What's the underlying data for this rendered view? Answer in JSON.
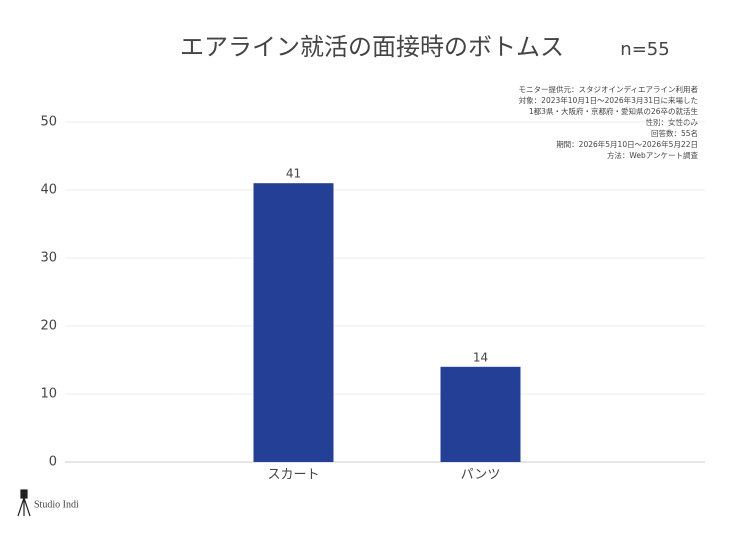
{
  "chart_data": {
    "type": "bar",
    "title": "エアライン就活の面接時のボトムス",
    "subtitle": "n=55",
    "notes": [
      "モニター提供元：スタジオインディエアライン利用者",
      "対象：2023年10月1日〜2026年3月31日に来場した",
      "1都3県・大阪府・京都府・愛知県の26卒の就活生",
      "性別：女性のみ",
      "回答数：55名",
      "期間：2026年5月10日〜2026年5月22日",
      "方法：Webアンケート調査"
    ],
    "logo": "Studio Indi",
    "categories": [
      "スカート",
      "パンツ"
    ],
    "values": [
      41,
      14
    ],
    "color": "#233f96",
    "ylim": [
      0,
      50
    ],
    "yticks": [
      0,
      10,
      20,
      30,
      40,
      50
    ],
    "grid": true
  }
}
